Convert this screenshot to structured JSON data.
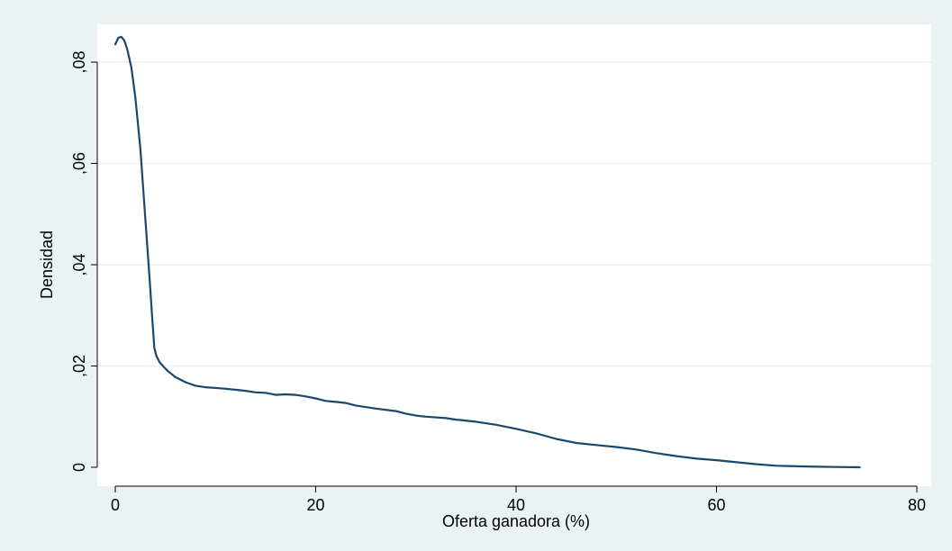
{
  "chart_data": {
    "type": "line",
    "title": "",
    "xlabel": "Oferta ganadora (%)",
    "ylabel": "Densidad",
    "xlim": [
      0,
      80
    ],
    "ylim": [
      0,
      0.085
    ],
    "x_ticks": [
      {
        "value": 0,
        "label": "0"
      },
      {
        "value": 20,
        "label": "20"
      },
      {
        "value": 40,
        "label": "40"
      },
      {
        "value": 60,
        "label": "60"
      },
      {
        "value": 80,
        "label": "80"
      }
    ],
    "y_ticks": [
      {
        "value": 0,
        "label": "0"
      },
      {
        "value": 0.02,
        "label": ",02"
      },
      {
        "value": 0.04,
        "label": ",04"
      },
      {
        "value": 0.06,
        "label": ",06"
      },
      {
        "value": 0.08,
        "label": ",08"
      }
    ],
    "grid": "horizontal",
    "legend": "none",
    "colors": {
      "line": "#1a476f",
      "background": "#eaf2f3",
      "plot_background": "#ffffff",
      "grid": "#eaf2f3"
    },
    "series": [
      {
        "x": [
          0,
          0.3,
          0.6,
          0.9,
          1.2,
          1.6,
          2.0,
          2.5,
          3.0,
          3.4,
          3.7,
          3.9,
          4.1,
          4.4,
          4.8,
          5.3,
          6.0,
          7.0,
          8.0,
          9.0,
          10.5,
          12,
          13,
          14,
          15,
          16,
          17,
          18,
          19,
          20,
          21,
          22,
          23,
          24,
          26,
          28,
          29,
          30,
          31,
          33,
          34,
          36,
          38,
          40,
          42,
          44,
          46,
          48,
          50,
          52,
          54,
          56,
          58,
          60,
          62,
          64,
          66,
          68,
          70,
          72,
          74.3
        ],
        "y": [
          0.0835,
          0.0848,
          0.085,
          0.0843,
          0.0825,
          0.079,
          0.073,
          0.063,
          0.049,
          0.038,
          0.029,
          0.0235,
          0.022,
          0.0208,
          0.0199,
          0.0189,
          0.0178,
          0.0168,
          0.0161,
          0.0158,
          0.0156,
          0.0153,
          0.0151,
          0.0148,
          0.0147,
          0.0143,
          0.0144,
          0.0143,
          0.014,
          0.0136,
          0.0131,
          0.0129,
          0.0127,
          0.0122,
          0.0116,
          0.0111,
          0.0106,
          0.0102,
          0.01,
          0.0097,
          0.0094,
          0.009,
          0.0084,
          0.0076,
          0.0067,
          0.0056,
          0.0048,
          0.0044,
          0.004,
          0.0035,
          0.0028,
          0.0022,
          0.0017,
          0.0014,
          0.001,
          0.0006,
          0.0003,
          0.0002,
          0.0001,
          5e-05,
          0.0
        ]
      }
    ]
  }
}
